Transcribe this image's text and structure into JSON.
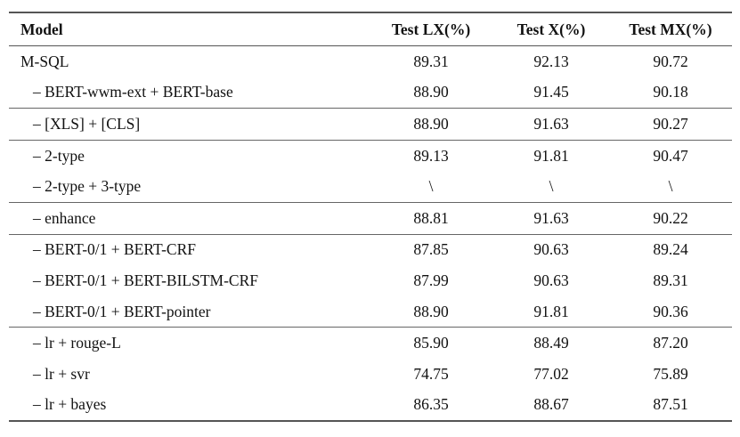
{
  "table": {
    "headers": [
      "Model",
      "Test LX(%)",
      "Test X(%)",
      "Test MX(%)"
    ],
    "rows": [
      {
        "model": "M-SQL",
        "lx": "89.31",
        "x": "92.13",
        "mx": "90.72",
        "sub": false,
        "sep": false
      },
      {
        "model": "– BERT-wwm-ext + BERT-base",
        "lx": "88.90",
        "x": "91.45",
        "mx": "90.18",
        "sub": true,
        "sep": false
      },
      {
        "model": "– [XLS] + [CLS]",
        "lx": "88.90",
        "x": "91.63",
        "mx": "90.27",
        "sub": true,
        "sep": true
      },
      {
        "model": "– 2-type",
        "lx": "89.13",
        "x": "91.81",
        "mx": "90.47",
        "sub": true,
        "sep": true
      },
      {
        "model": "– 2-type + 3-type",
        "lx": "\\",
        "x": "\\",
        "mx": "\\",
        "sub": true,
        "sep": false
      },
      {
        "model": "– enhance",
        "lx": "88.81",
        "x": "91.63",
        "mx": "90.22",
        "sub": true,
        "sep": true
      },
      {
        "model": "– BERT-0/1 + BERT-CRF",
        "lx": "87.85",
        "x": "90.63",
        "mx": "89.24",
        "sub": true,
        "sep": true
      },
      {
        "model": "– BERT-0/1 + BERT-BILSTM-CRF",
        "lx": "87.99",
        "x": "90.63",
        "mx": "89.31",
        "sub": true,
        "sep": false
      },
      {
        "model": "– BERT-0/1 + BERT-pointer",
        "lx": "88.90",
        "x": "91.81",
        "mx": "90.36",
        "sub": true,
        "sep": false
      },
      {
        "model": "– lr + rouge-L",
        "lx": "85.90",
        "x": "88.49",
        "mx": "87.20",
        "sub": true,
        "sep": true
      },
      {
        "model": "– lr + svr",
        "lx": "74.75",
        "x": "77.02",
        "mx": "75.89",
        "sub": true,
        "sep": false
      },
      {
        "model": "– lr + bayes",
        "lx": "86.35",
        "x": "88.67",
        "mx": "87.51",
        "sub": true,
        "sep": false
      }
    ]
  }
}
